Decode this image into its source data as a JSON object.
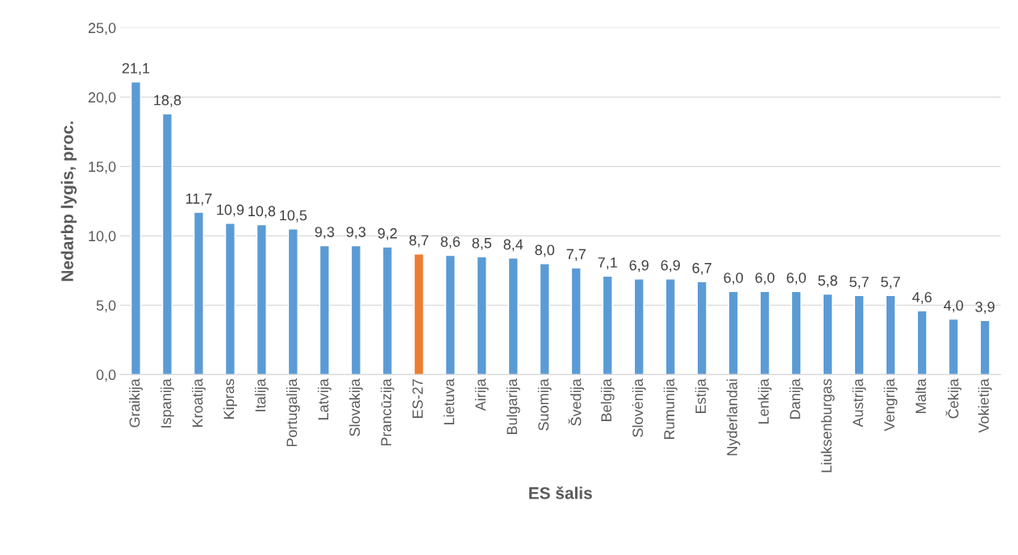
{
  "chart_data": {
    "type": "bar",
    "xlabel": "ES šalis",
    "ylabel": "Nedarbp lygis, proc.",
    "categories": [
      "Graikija",
      "Ispanija",
      "Kroatija",
      "Kipras",
      "Italija",
      "Portugalija",
      "Latvija",
      "Slovakija",
      "Prancūzija",
      "ES-27",
      "Lietuva",
      "Airija",
      "Bulgarija",
      "Suomija",
      "Švedija",
      "Belgija",
      "Slovėnija",
      "Rumunija",
      "Estija",
      "Nyderlandai",
      "Lenkija",
      "Danija",
      "Liuksenburgas",
      "Austrija",
      "Vengrija",
      "Malta",
      "Čekija",
      "Vokietija"
    ],
    "values": [
      21.1,
      18.8,
      11.7,
      10.9,
      10.8,
      10.5,
      9.3,
      9.3,
      9.2,
      8.7,
      8.6,
      8.5,
      8.4,
      8.0,
      7.7,
      7.1,
      6.9,
      6.9,
      6.7,
      6.0,
      6.0,
      6.0,
      5.8,
      5.7,
      5.7,
      4.6,
      4.0,
      3.9
    ],
    "value_labels": [
      "21,1",
      "18,8",
      "11,7",
      "10,9",
      "10,8",
      "10,5",
      "9,3",
      "9,3",
      "9,2",
      "8,7",
      "8,6",
      "8,5",
      "8,4",
      "8,0",
      "7,7",
      "7,1",
      "6,9",
      "6,9",
      "6,7",
      "6,0",
      "6,0",
      "6,0",
      "5,8",
      "5,7",
      "5,7",
      "4,6",
      "4,0",
      "3,9"
    ],
    "colors": [
      "#5b9bd5",
      "#5b9bd5",
      "#5b9bd5",
      "#5b9bd5",
      "#5b9bd5",
      "#5b9bd5",
      "#5b9bd5",
      "#5b9bd5",
      "#5b9bd5",
      "#ed7d31",
      "#5b9bd5",
      "#5b9bd5",
      "#5b9bd5",
      "#5b9bd5",
      "#5b9bd5",
      "#5b9bd5",
      "#5b9bd5",
      "#5b9bd5",
      "#5b9bd5",
      "#5b9bd5",
      "#5b9bd5",
      "#5b9bd5",
      "#5b9bd5",
      "#5b9bd5",
      "#5b9bd5",
      "#5b9bd5",
      "#5b9bd5",
      "#5b9bd5"
    ],
    "ylim": [
      0,
      25
    ],
    "yticks": [
      {
        "value": 0,
        "label": "0,0"
      },
      {
        "value": 5,
        "label": "5,0"
      },
      {
        "value": 10,
        "label": "10,0"
      },
      {
        "value": 15,
        "label": "15,0"
      },
      {
        "value": 20,
        "label": "20,0"
      },
      {
        "value": 25,
        "label": "25,0"
      }
    ],
    "grid": "y"
  }
}
